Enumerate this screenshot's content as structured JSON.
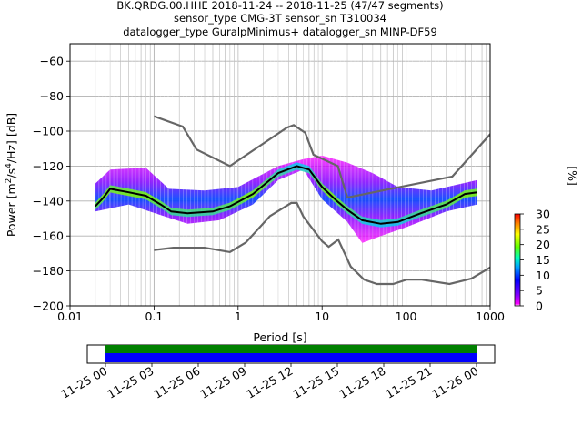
{
  "chart_data": {
    "type": "heatmap",
    "title_lines": [
      "BK.QRDG.00.HHE   2018-11-24 -- 2018-11-25  (47/47 segments)",
      "sensor_type CMG-3T sensor_sn T310034",
      "datalogger_type GuralpMinimus+ datalogger_sn MINP-DF59"
    ],
    "xlabel": "Period [s]",
    "ylabel_main": "Power [m",
    "ylabel_sup1": "2",
    "ylabel_mid": "/s",
    "ylabel_sup2": "4",
    "ylabel_tail": "/Hz] [dB]",
    "xscale": "log",
    "xlim": [
      0.01,
      1000
    ],
    "ylim": [
      -200,
      -50
    ],
    "x_tick_values": [
      0.01,
      0.1,
      1,
      10,
      100,
      1000
    ],
    "x_tick_labels": [
      "0.01",
      "0.1",
      "1",
      "10",
      "100",
      "1000"
    ],
    "y_tick_values": [
      -200,
      -180,
      -160,
      -140,
      -120,
      -100,
      -80,
      -60
    ],
    "y_tick_labels": [
      "−200",
      "−180",
      "−160",
      "−140",
      "−120",
      "−100",
      "−80",
      "−60"
    ],
    "grid": true,
    "colorbar": {
      "label": "[%]",
      "range": [
        0,
        30
      ],
      "tick_values": [
        0,
        5,
        10,
        15,
        20,
        25,
        30
      ],
      "tick_labels": [
        "0",
        "5",
        "10",
        "15",
        "20",
        "25",
        "30"
      ]
    },
    "noise_model_high": [
      [
        0.1,
        -91.5
      ],
      [
        0.22,
        -97.4
      ],
      [
        0.32,
        -110.5
      ],
      [
        0.8,
        -120
      ],
      [
        3.8,
        -98
      ],
      [
        4.6,
        -96.5
      ],
      [
        6.3,
        -101
      ],
      [
        7.9,
        -113.5
      ],
      [
        15.4,
        -120
      ],
      [
        20,
        -138
      ],
      [
        354.8,
        -126
      ],
      [
        10000,
        -48
      ]
    ],
    "noise_model_low": [
      [
        0.1,
        -168
      ],
      [
        0.17,
        -166.7
      ],
      [
        0.4,
        -166.7
      ],
      [
        0.8,
        -169.2
      ],
      [
        1.24,
        -163.7
      ],
      [
        2.4,
        -148.6
      ],
      [
        4.3,
        -141.1
      ],
      [
        5,
        -141.1
      ],
      [
        6,
        -149
      ],
      [
        10,
        -163
      ],
      [
        12,
        -166.2
      ],
      [
        15.6,
        -162.1
      ],
      [
        21.9,
        -177.5
      ],
      [
        31.6,
        -185
      ],
      [
        45,
        -187.5
      ],
      [
        70,
        -187.5
      ],
      [
        101,
        -185
      ],
      [
        154,
        -185
      ],
      [
        328,
        -187.5
      ],
      [
        600,
        -184.4
      ],
      [
        1000,
        -178
      ]
    ],
    "median_psd": [
      [
        0.02,
        -143
      ],
      [
        0.025,
        -138
      ],
      [
        0.03,
        -133
      ],
      [
        0.05,
        -135
      ],
      [
        0.08,
        -137
      ],
      [
        0.12,
        -142
      ],
      [
        0.16,
        -146
      ],
      [
        0.25,
        -147
      ],
      [
        0.5,
        -146
      ],
      [
        0.8,
        -143
      ],
      [
        1.5,
        -136
      ],
      [
        3,
        -124
      ],
      [
        5,
        -120
      ],
      [
        7,
        -122
      ],
      [
        10,
        -132
      ],
      [
        15,
        -140
      ],
      [
        20,
        -145
      ],
      [
        30,
        -151
      ],
      [
        50,
        -153
      ],
      [
        80,
        -152
      ],
      [
        150,
        -147
      ],
      [
        300,
        -142
      ],
      [
        500,
        -136
      ],
      [
        700,
        -135
      ]
    ],
    "psd_band_upper": [
      [
        0.02,
        -130
      ],
      [
        0.03,
        -122
      ],
      [
        0.08,
        -121
      ],
      [
        0.15,
        -133
      ],
      [
        0.4,
        -134
      ],
      [
        1,
        -132
      ],
      [
        3,
        -120
      ],
      [
        6,
        -116
      ],
      [
        10,
        -114
      ],
      [
        20,
        -118
      ],
      [
        40,
        -124
      ],
      [
        80,
        -132
      ],
      [
        200,
        -134
      ],
      [
        700,
        -128
      ]
    ],
    "psd_band_lower": [
      [
        0.02,
        -146
      ],
      [
        0.05,
        -142
      ],
      [
        0.12,
        -148
      ],
      [
        0.25,
        -153
      ],
      [
        0.6,
        -151
      ],
      [
        1.5,
        -142
      ],
      [
        3,
        -128
      ],
      [
        6,
        -122
      ],
      [
        10,
        -139
      ],
      [
        20,
        -152
      ],
      [
        30,
        -164
      ],
      [
        50,
        -160
      ],
      [
        100,
        -155
      ],
      [
        300,
        -146
      ],
      [
        700,
        -142
      ]
    ],
    "coverage": {
      "tick_labels": [
        "11-25 00",
        "11-25 03",
        "11-25 06",
        "11-25 09",
        "11-25 12",
        "11-25 15",
        "11-25 18",
        "11-25 21",
        "11-26 00"
      ],
      "colors": [
        "#008000",
        "#0000ff"
      ]
    },
    "colors": {
      "noise_model": "#666666",
      "median": "#000000",
      "grid": "#b0b0b0"
    }
  }
}
